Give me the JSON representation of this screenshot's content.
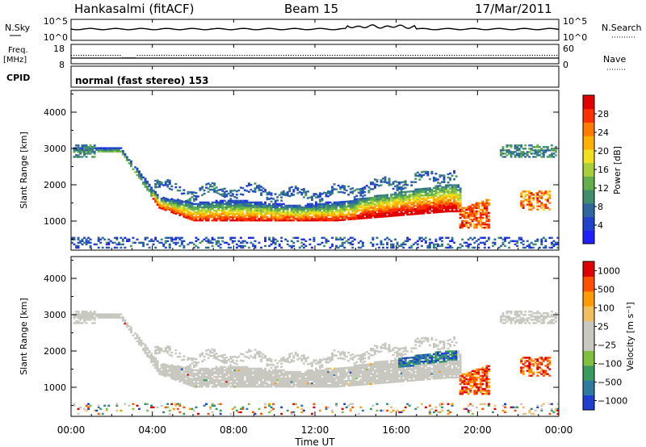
{
  "header": {
    "station": "Hankasalmi (fitACF)",
    "beam": "Beam 15",
    "date": "17/Mar/2011"
  },
  "sky_panel": {
    "left_label": "N.Sky",
    "right_label": "N.Search",
    "left_ticks": [
      "10^5",
      "10^0"
    ],
    "right_ticks": [
      "10^5",
      "10^0"
    ]
  },
  "freq_panel": {
    "left_label_top": "Freq.",
    "left_label_unit": "[MHz]",
    "left_ticks": [
      "18",
      "8"
    ],
    "right_label": "Nave",
    "right_ticks": [
      "60",
      "0"
    ]
  },
  "cpid": {
    "label": "CPID",
    "text": "normal (fast stereo) 153"
  },
  "x_axis": {
    "label": "Time UT",
    "ticks": [
      "00:00",
      "04:00",
      "08:00",
      "12:00",
      "16:00",
      "20:00",
      "00:00"
    ]
  },
  "colors": {
    "power": [
      "#1f1fff",
      "#2244cc",
      "#2e66a0",
      "#3f8f6e",
      "#63b04a",
      "#a8cf3a",
      "#f0e020",
      "#ffb000",
      "#ff7a00",
      "#ff3000",
      "#e00000"
    ],
    "velocity": [
      "#e00000",
      "#ff5000",
      "#ff9a00",
      "#f0c060",
      "#c8c8c0",
      "#c8c8c0",
      "#7fc040",
      "#3a9a60",
      "#2e7aa0",
      "#1f3fd0"
    ]
  },
  "chart_data": [
    {
      "type": "heatmap",
      "name": "power",
      "ylabel": "Slant Range [km]",
      "y_ticks": [
        "1000",
        "2000",
        "3000",
        "4000"
      ],
      "ylim": [
        200,
        4600
      ],
      "xlim_hours": [
        0,
        24
      ],
      "colorbar_label": "Power [dB]",
      "colorbar_ticks": [
        "4",
        "8",
        "12",
        "16",
        "20",
        "24",
        "28"
      ],
      "colorbar_range": [
        0,
        32
      ]
    },
    {
      "type": "heatmap",
      "name": "velocity",
      "ylabel": "Slant Range [km]",
      "y_ticks": [
        "1000",
        "2000",
        "3000",
        "4000"
      ],
      "ylim": [
        200,
        4600
      ],
      "xlim_hours": [
        0,
        24
      ],
      "colorbar_label": "Velocity [m s⁻¹]",
      "colorbar_ticks": [
        "1000",
        "500",
        "100",
        "25",
        "−25",
        "−100",
        "−500",
        "−1000"
      ]
    }
  ]
}
